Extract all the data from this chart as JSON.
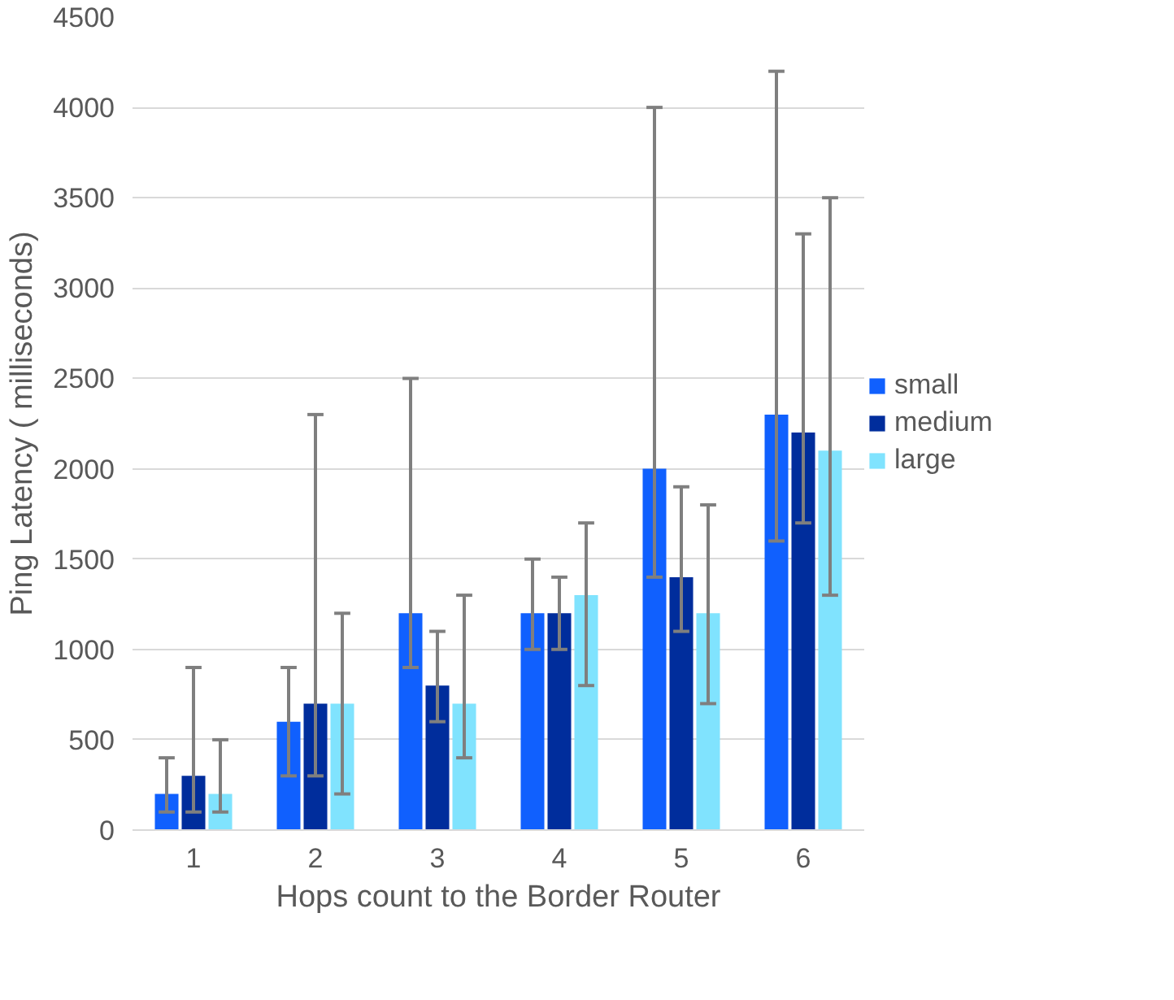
{
  "chart_data": {
    "type": "bar",
    "xlabel": "Hops count to the Border Router",
    "ylabel": "Ping Latency ( milliseconds)",
    "categories": [
      "1",
      "2",
      "3",
      "4",
      "5",
      "6"
    ],
    "series": [
      {
        "name": "small",
        "color": "#1060fe",
        "values": [
          200,
          600,
          1200,
          1200,
          2000,
          2300
        ],
        "errors": [
          [
            100,
            400
          ],
          [
            300,
            900
          ],
          [
            900,
            2500
          ],
          [
            1000,
            1500
          ],
          [
            1400,
            4000
          ],
          [
            1600,
            4200
          ]
        ]
      },
      {
        "name": "medium",
        "color": "#002d9c",
        "values": [
          300,
          700,
          800,
          1200,
          1400,
          2200
        ],
        "errors": [
          [
            100,
            900
          ],
          [
            300,
            2300
          ],
          [
            600,
            1100
          ],
          [
            1000,
            1400
          ],
          [
            1100,
            1900
          ],
          [
            1700,
            3300
          ]
        ]
      },
      {
        "name": "large",
        "color": "#80e3fe",
        "values": [
          200,
          700,
          700,
          1300,
          1200,
          2100
        ],
        "errors": [
          [
            100,
            500
          ],
          [
            200,
            1200
          ],
          [
            400,
            1300
          ],
          [
            800,
            1700
          ],
          [
            700,
            1800
          ],
          [
            1300,
            3500
          ]
        ]
      }
    ],
    "ylim": [
      0,
      4500
    ],
    "yticks": [
      0,
      500,
      1000,
      1500,
      2000,
      2500,
      3000,
      3500,
      4000,
      4500
    ],
    "grid": "y",
    "legend": "right"
  }
}
